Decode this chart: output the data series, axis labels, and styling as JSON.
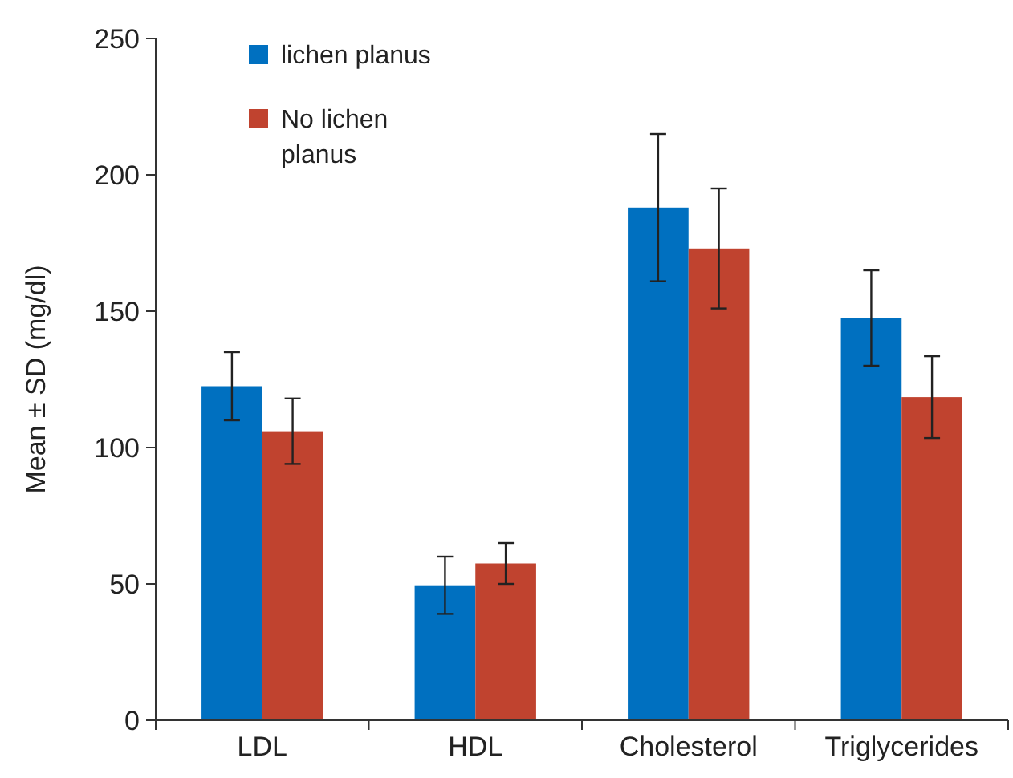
{
  "chart_data": {
    "type": "bar",
    "ylabel": "Mean ± SD (mg/dl)",
    "categories": [
      "LDL",
      "HDL",
      "Cholesterol",
      "Triglycerides"
    ],
    "series": [
      {
        "name": "lichen planus",
        "color": "#0070c0",
        "values": [
          122.5,
          49.5,
          188,
          147.5
        ],
        "errors": [
          12.5,
          10.5,
          27,
          17.5
        ]
      },
      {
        "name": "No lichen planus",
        "color": "#c0432f",
        "values": [
          106,
          57.5,
          173,
          118.5
        ],
        "errors": [
          12,
          7.5,
          22,
          15
        ]
      }
    ],
    "ylim": [
      0,
      250
    ],
    "yticks": [
      0,
      50,
      100,
      150,
      200,
      250
    ],
    "grid": false,
    "legend": "top left"
  }
}
